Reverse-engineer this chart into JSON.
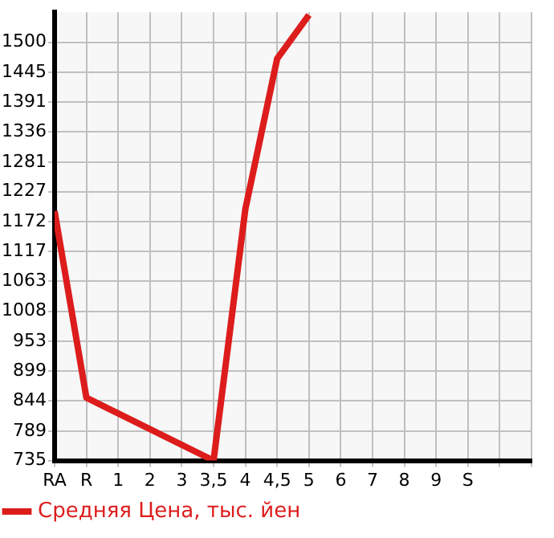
{
  "chart_data": {
    "type": "line",
    "categories": [
      "RA",
      "R",
      "1",
      "2",
      "3",
      "3,5",
      "4",
      "4,5",
      "5",
      "6",
      "7",
      "8",
      "9",
      "S",
      null,
      null
    ],
    "series": [
      {
        "name": "Средняя Цена, тыс. йен",
        "color": "#dd1c1c",
        "values": [
          1191,
          850,
          null,
          null,
          null,
          735,
          1195,
          1470,
          1550,
          null,
          null,
          null,
          null,
          null,
          null,
          null
        ]
      }
    ],
    "ylim": [
      735,
      1555
    ],
    "yticks": [
      735,
      789,
      844,
      899,
      953,
      1008,
      1063,
      1117,
      1172,
      1227,
      1281,
      1336,
      1391,
      1445,
      1500
    ],
    "grid": true,
    "legend": "bottom",
    "marker": "none",
    "line_style": "solid"
  }
}
